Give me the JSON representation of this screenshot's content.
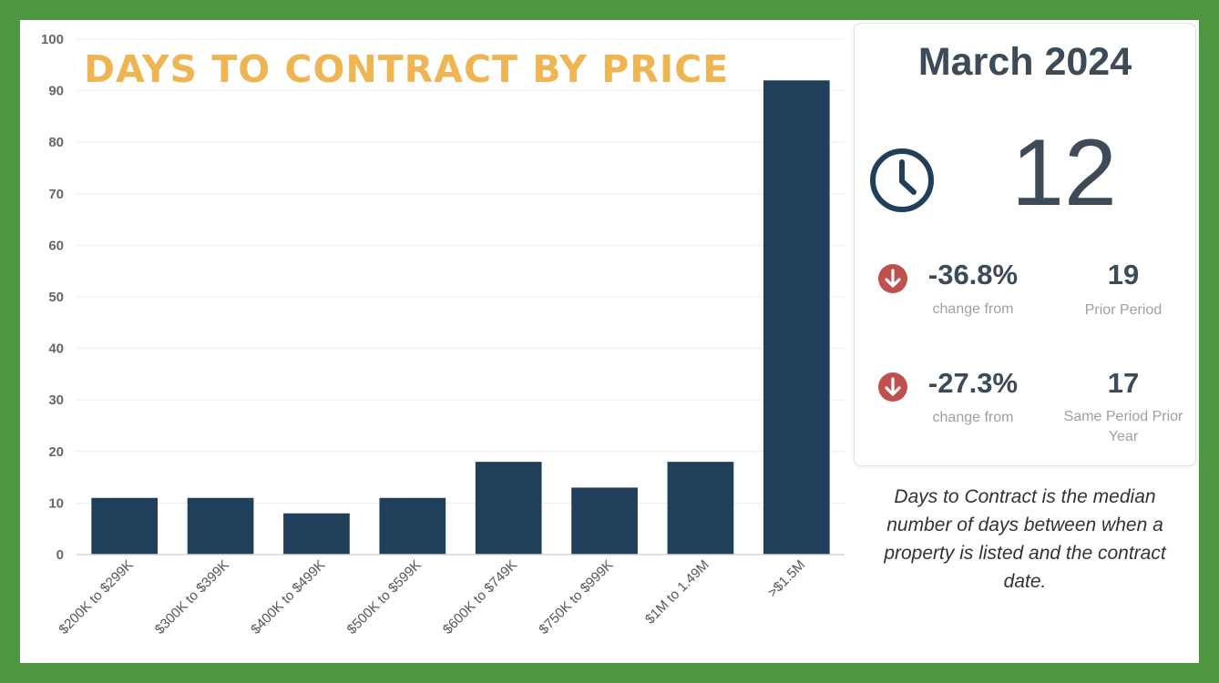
{
  "chart_data": {
    "type": "bar",
    "title": "DAYS TO CONTRACT BY PRICE",
    "categories": [
      "$200K to $299K",
      "$300K to $399K",
      "$400K to $499K",
      "$500K to $599K",
      "$600K to $749K",
      "$750K to $999K",
      "$1M to 1.49M",
      ">$1.5M"
    ],
    "values": [
      11,
      11,
      8,
      11,
      18,
      13,
      18,
      92
    ],
    "ylim": [
      0,
      100
    ],
    "yticks": [
      0,
      10,
      20,
      30,
      40,
      50,
      60,
      70,
      80,
      90,
      100
    ],
    "xlabel": "",
    "ylabel": "",
    "grid": true,
    "bar_color": "#1f3f5b",
    "title_color": "#eeb552"
  },
  "summary": {
    "month": "March 2024",
    "value": "12",
    "rows": [
      {
        "change": "-36.8%",
        "change_label": "change from",
        "compare_value": "19",
        "compare_label": "Prior Period"
      },
      {
        "change": "-27.3%",
        "change_label": "change from",
        "compare_value": "17",
        "compare_label": "Same Period Prior Year"
      }
    ],
    "icons": {
      "value": "clock-icon",
      "change": "arrow-down-circle-icon"
    },
    "down_color": "#c0504d"
  },
  "definition": "Days to Contract is the median number of days between when a property is listed and the contract date.",
  "colors": {
    "border": "#4f9641",
    "text_dark": "#3d4a57"
  }
}
